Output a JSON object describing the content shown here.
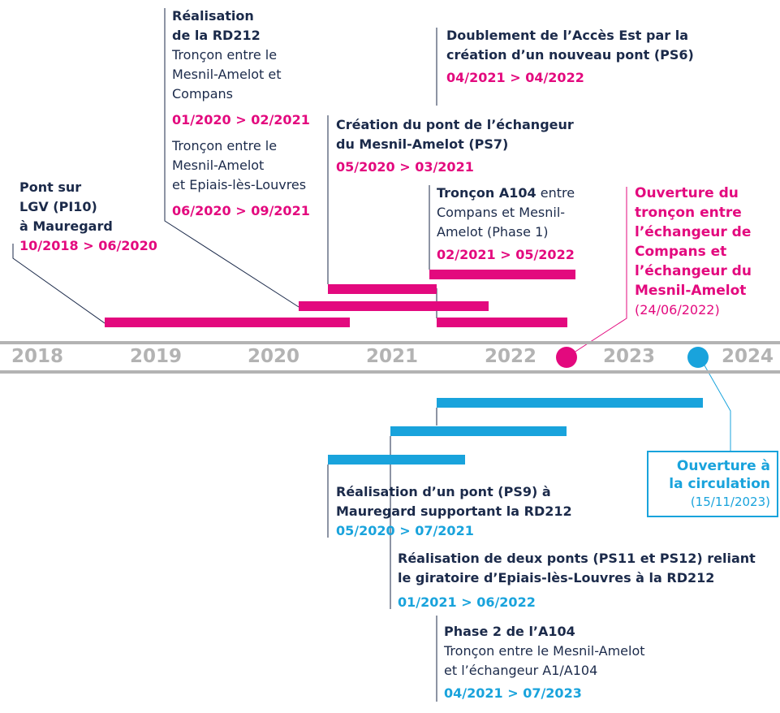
{
  "colors": {
    "pink": "#e3097e",
    "blue": "#19a3dc",
    "navy": "#1b2a4a",
    "gray": "#b3b3b3"
  },
  "years": [
    "2018",
    "2019",
    "2020",
    "2021",
    "2022",
    "2023",
    "2024"
  ],
  "top": {
    "pi10": {
      "l1": "Pont sur",
      "l2": "LGV (PI10)",
      "l3": "à Mauregard",
      "date": "10/2018 > 06/2020"
    },
    "rd212": {
      "title1": "Réalisation",
      "title2": "de la RD212",
      "a1": "Tronçon entre le",
      "a2": "Mesnil-Amelot et",
      "a3": "Compans",
      "a_date": "01/2020 > 02/2021",
      "b1": "Tronçon entre le",
      "b2": "Mesnil-Amelot",
      "b3": "et Epiais-lès-Louvres",
      "b_date": "06/2020 > 09/2021"
    },
    "ps7": {
      "l1": "Création du pont de l’échangeur",
      "l2": "du Mesnil-Amelot (PS7)",
      "date": "05/2020 > 03/2021"
    },
    "ps6": {
      "l1": "Doublement de l’Accès Est par la",
      "l2": "création d’un nouveau pont (PS6)",
      "date": "04/2021 > 04/2022"
    },
    "a104": {
      "bold": "Tronçon A104",
      "rest": " entre",
      "l2": "Compans et Mesnil-",
      "l3": "Amelot (Phase 1)",
      "date": "02/2021 > 05/2022"
    },
    "opening": {
      "l1": "Ouverture du",
      "l2": "tronçon entre",
      "l3": "l’échangeur de",
      "l4": "Compans et",
      "l5": "l’échangeur du",
      "l6": "Mesnil-Amelot",
      "date": "(24/06/2022)"
    }
  },
  "bottom": {
    "ps9": {
      "l1": "Réalisation d’un pont (PS9) à",
      "l2": "Mauregard supportant la RD212",
      "date": "05/2020 > 07/2021"
    },
    "ps11": {
      "l1": "Réalisation de deux ponts (PS11 et PS12) reliant",
      "l2": "le giratoire d’Epiais-lès-Louvres à la RD212",
      "date": "01/2021 > 06/2022"
    },
    "phase2": {
      "l1": "Phase 2 de l’A104",
      "l2": "Tronçon entre le Mesnil-Amelot",
      "l3": "et l’échangeur A1/A104",
      "date": "04/2021 > 07/2023"
    },
    "circulation": {
      "l1": "Ouverture à",
      "l2": "la circulation",
      "date": "(15/11/2023)"
    }
  }
}
